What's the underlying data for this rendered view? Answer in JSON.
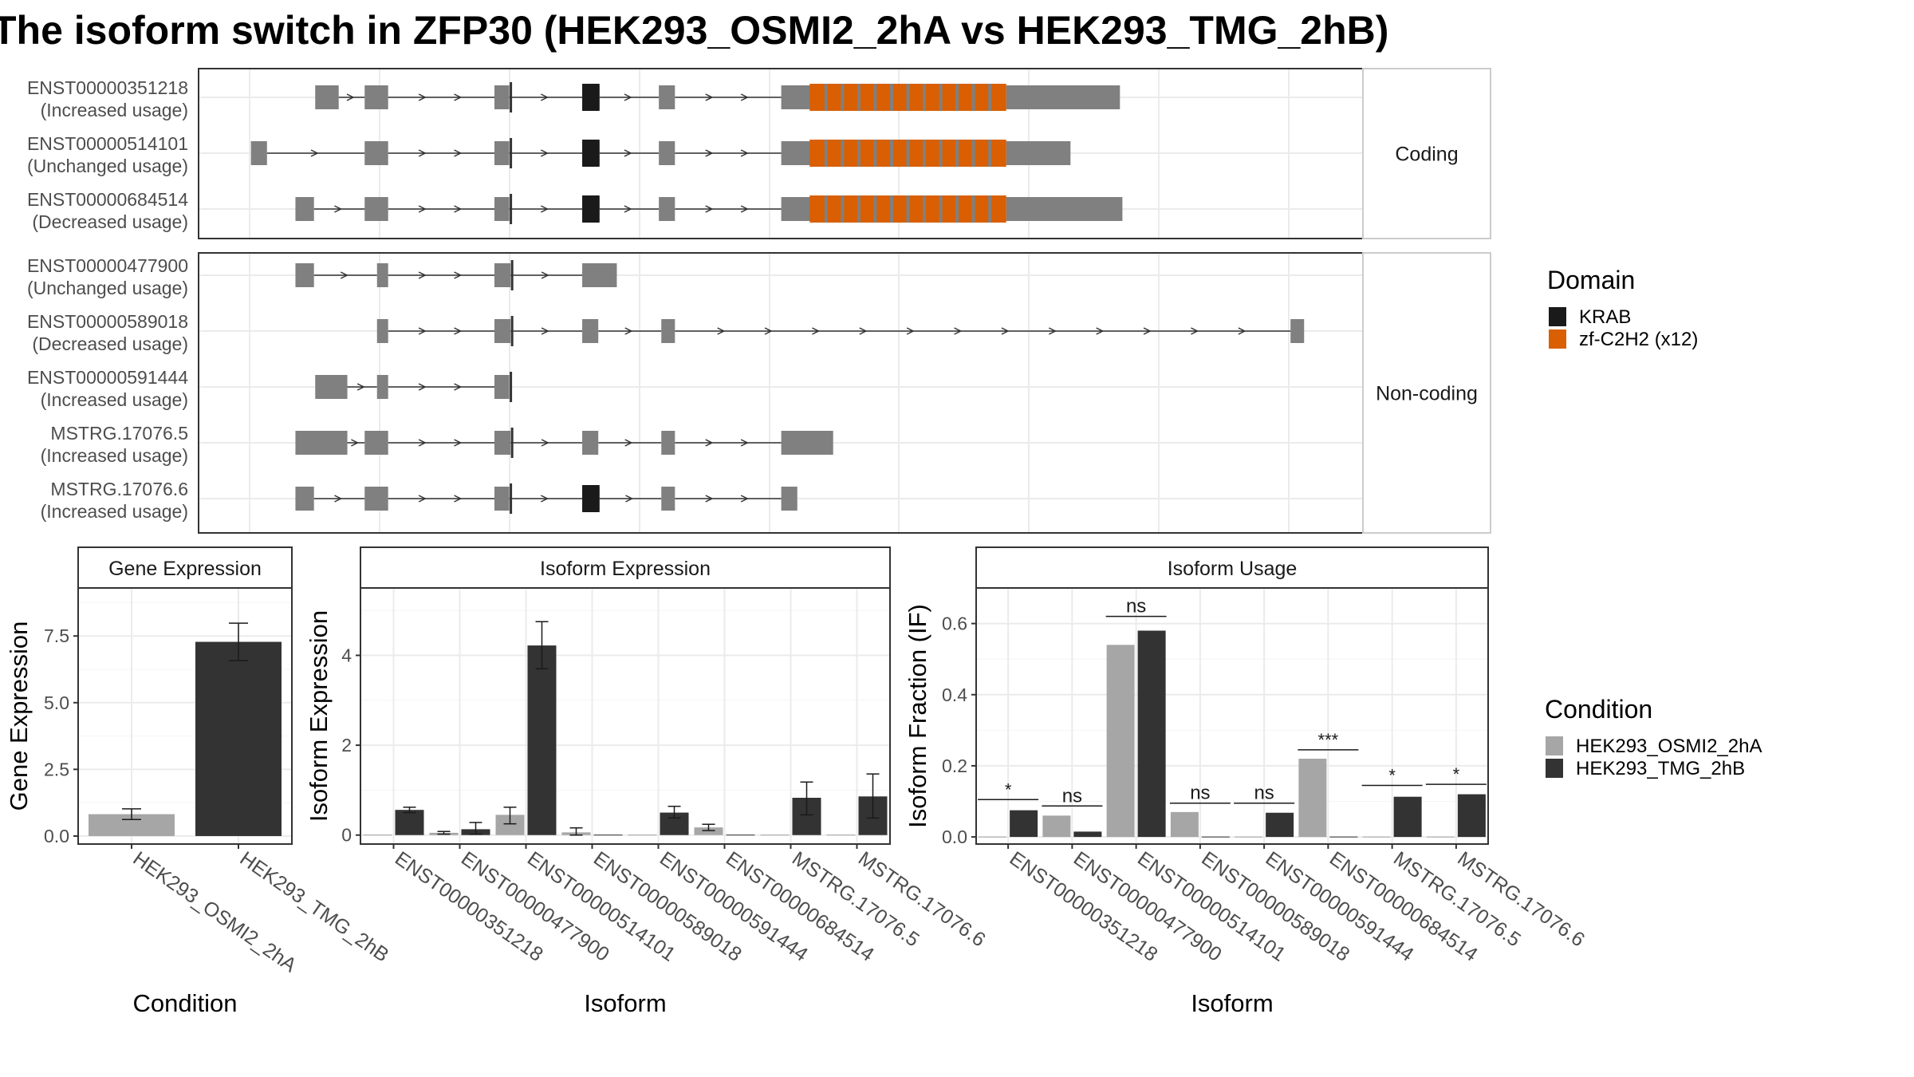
{
  "title": "The isoform switch in ZFP30 (HEK293_OSMI2_2hA vs HEK293_TMG_2hB)",
  "colors": {
    "exon": "#808080",
    "krab": "#1a1a1a",
    "zf": "#d95f02",
    "cond_a": "#a6a6a6",
    "cond_b": "#333333",
    "grid": "#ebebeb",
    "panel_border": "#333333",
    "strip_border": "#cccccc"
  },
  "structure": {
    "facets": [
      "Coding",
      "Non-coding"
    ],
    "isoforms": [
      {
        "id": "ENST00000351218",
        "usage": "(Increased usage)",
        "facet": "Coding",
        "exons": [
          [
            255,
            274
          ],
          [
            295,
            314
          ],
          [
            400,
            412
          ],
          [
            471,
            485
          ],
          [
            533,
            546
          ],
          [
            632,
            814
          ],
          [
            814,
            906
          ]
        ],
        "domains": [
          [
            "krab",
            471,
            485
          ],
          [
            "zf",
            655,
            814
          ]
        ]
      },
      {
        "id": "ENST00000514101",
        "usage": "(Unchanged usage)",
        "facet": "Coding",
        "exons": [
          [
            203,
            216
          ],
          [
            295,
            314
          ],
          [
            400,
            412
          ],
          [
            471,
            485
          ],
          [
            533,
            546
          ],
          [
            632,
            814
          ],
          [
            814,
            866
          ]
        ],
        "domains": [
          [
            "krab",
            471,
            485
          ],
          [
            "zf",
            655,
            814
          ]
        ]
      },
      {
        "id": "ENST00000684514",
        "usage": "(Decreased usage)",
        "facet": "Coding",
        "exons": [
          [
            239,
            254
          ],
          [
            295,
            314
          ],
          [
            400,
            412
          ],
          [
            471,
            485
          ],
          [
            533,
            546
          ],
          [
            632,
            814
          ],
          [
            814,
            908
          ]
        ],
        "domains": [
          [
            "krab",
            471,
            485
          ],
          [
            "zf",
            655,
            814
          ]
        ]
      },
      {
        "id": "ENST00000477900",
        "usage": "(Unchanged usage)",
        "facet": "Non-coding",
        "exons": [
          [
            239,
            254
          ],
          [
            305,
            314
          ],
          [
            400,
            413
          ],
          [
            471,
            499
          ]
        ],
        "domains": []
      },
      {
        "id": "ENST00000589018",
        "usage": "(Decreased usage)",
        "facet": "Non-coding",
        "exons": [
          [
            305,
            314
          ],
          [
            400,
            413
          ],
          [
            471,
            484
          ],
          [
            535,
            546
          ],
          [
            1044,
            1055
          ]
        ],
        "domains": []
      },
      {
        "id": "ENST00000591444",
        "usage": "(Increased usage)",
        "facet": "Non-coding",
        "exons": [
          [
            255,
            281
          ],
          [
            305,
            314
          ],
          [
            400,
            412
          ]
        ],
        "domains": []
      },
      {
        "id": "MSTRG.17076.5",
        "usage": "(Increased usage)",
        "facet": "Non-coding",
        "exons": [
          [
            239,
            281
          ],
          [
            295,
            314
          ],
          [
            400,
            413
          ],
          [
            471,
            484
          ],
          [
            535,
            546
          ],
          [
            632,
            674
          ]
        ],
        "domains": []
      },
      {
        "id": "MSTRG.17076.6",
        "usage": "(Increased usage)",
        "facet": "Non-coding",
        "exons": [
          [
            239,
            254
          ],
          [
            295,
            314
          ],
          [
            400,
            412
          ],
          [
            471,
            485
          ],
          [
            535,
            546
          ],
          [
            632,
            645
          ]
        ],
        "domains": [
          [
            "krab",
            471,
            485
          ]
        ]
      }
    ]
  },
  "legend_domain": {
    "title": "Domain",
    "items": [
      {
        "label": "KRAB",
        "key": "krab"
      },
      {
        "label": "zf-C2H2 (x12)",
        "key": "zf"
      }
    ]
  },
  "legend_condition": {
    "title": "Condition",
    "items": [
      {
        "label": "HEK293_OSMI2_2hA",
        "key": "cond_a"
      },
      {
        "label": "HEK293_TMG_2hB",
        "key": "cond_b"
      }
    ]
  },
  "chart_data": [
    {
      "type": "bar",
      "title": "Gene Expression",
      "xlabel": "Condition",
      "ylabel": "Gene Expression",
      "ylim": [
        -0.3,
        9.3
      ],
      "yticks": [
        "0.0",
        "2.5",
        "5.0",
        "7.5"
      ],
      "categories": [
        "HEK293_OSMI2_2hA",
        "HEK293_TMG_2hB"
      ],
      "values": [
        0.82,
        7.28
      ],
      "errors": [
        [
          0.62,
          1.02
        ],
        [
          6.58,
          7.98
        ]
      ],
      "series_keys": [
        "cond_a",
        "cond_b"
      ]
    },
    {
      "type": "bar",
      "title": "Isoform Expression",
      "xlabel": "Isoform",
      "ylabel": "Isoform Expression",
      "ylim": [
        -0.2,
        5.5
      ],
      "yticks": [
        "0",
        "2",
        "4"
      ],
      "categories": [
        "ENST00000351218",
        "ENST00000477900",
        "ENST00000514101",
        "ENST00000589018",
        "ENST00000591444",
        "ENST00000684514",
        "MSTRG.17076.5",
        "MSTRG.17076.6"
      ],
      "series": [
        {
          "name": "HEK293_OSMI2_2hA",
          "values": [
            0.0,
            0.05,
            0.45,
            0.06,
            0.0,
            0.17,
            0.0,
            0.0
          ],
          "errors": [
            null,
            [
              0.02,
              0.08
            ],
            [
              0.25,
              0.62
            ],
            [
              0.0,
              0.16
            ],
            null,
            [
              0.1,
              0.24
            ],
            null,
            null
          ]
        },
        {
          "name": "HEK293_TMG_2hB",
          "values": [
            0.56,
            0.13,
            4.22,
            0.0,
            0.5,
            0.0,
            0.83,
            0.86
          ],
          "errors": [
            [
              0.5,
              0.62
            ],
            [
              0.02,
              0.28
            ],
            [
              3.7,
              4.75
            ],
            null,
            [
              0.38,
              0.64
            ],
            null,
            [
              0.45,
              1.18
            ],
            [
              0.38,
              1.36
            ]
          ]
        }
      ]
    },
    {
      "type": "bar",
      "title": "Isoform Usage",
      "xlabel": "Isoform",
      "ylabel": "Isoform Fraction (IF)",
      "ylim": [
        -0.02,
        0.7
      ],
      "yticks": [
        "0.0",
        "0.2",
        "0.4",
        "0.6"
      ],
      "categories": [
        "ENST00000351218",
        "ENST00000477900",
        "ENST00000514101",
        "ENST00000589018",
        "ENST00000591444",
        "ENST00000684514",
        "MSTRG.17076.5",
        "MSTRG.17076.6"
      ],
      "series": [
        {
          "name": "HEK293_OSMI2_2hA",
          "values": [
            0.0,
            0.06,
            0.54,
            0.07,
            0.0,
            0.22,
            0.0,
            0.0
          ]
        },
        {
          "name": "HEK293_TMG_2hB",
          "values": [
            0.075,
            0.015,
            0.58,
            0.0,
            0.068,
            0.0,
            0.113,
            0.12
          ]
        }
      ],
      "significance": [
        "*",
        "ns",
        "ns",
        "ns",
        "ns",
        "***",
        "*",
        "*"
      ],
      "significance_y": [
        0.105,
        0.087,
        0.62,
        0.095,
        0.095,
        0.245,
        0.145,
        0.148
      ]
    }
  ]
}
